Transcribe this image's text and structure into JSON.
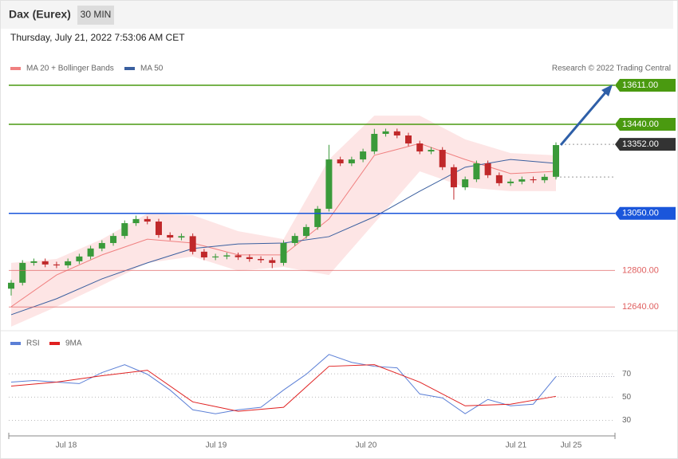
{
  "chart_data": {
    "type": "candlestick",
    "title": "Dax (Eurex)",
    "interval": "30 MIN",
    "subtitle": "Thursday, July 21, 2022 7:53:06 AM CET",
    "credit": "Research © 2022 Trading Central",
    "ylim": [
      12536,
      13740
    ],
    "xticks": [
      {
        "value": 4.85,
        "label": "Jul 18"
      },
      {
        "value": 18.06,
        "label": "Jul 19"
      },
      {
        "value": 31.27,
        "label": "Jul 20"
      },
      {
        "value": 44.48,
        "label": "Jul 21"
      },
      {
        "value": 49.33,
        "label": "Jul 25"
      }
    ],
    "up_color": "#3a9a3a",
    "down_color": "#c0282a",
    "open": [
      12720,
      12746,
      12833,
      12840,
      12826,
      12822,
      12840,
      12861,
      12896,
      12920,
      12951,
      13007,
      13025,
      13014,
      12955,
      12944,
      12950,
      12882,
      12857,
      12861,
      12866,
      12858,
      12850,
      12845,
      12833,
      12920,
      12951,
      12990,
      13070,
      13286,
      13269,
      13286,
      13321,
      13398,
      13409,
      13391,
      13356,
      13321,
      13328,
      13252,
      13164,
      13199,
      13269,
      13217,
      13182,
      13189,
      13199,
      13195,
      13210
    ],
    "high": [
      12758,
      12845,
      12852,
      12852,
      12838,
      12852,
      12873,
      12908,
      12932,
      12963,
      13019,
      13040,
      13037,
      13026,
      12967,
      12962,
      12962,
      12894,
      12873,
      12878,
      12878,
      12870,
      12862,
      12857,
      12932,
      12963,
      13002,
      13082,
      13350,
      13298,
      13298,
      13333,
      13420,
      13421,
      13421,
      13403,
      13368,
      13340,
      13340,
      13264,
      13211,
      13281,
      13281,
      13229,
      13201,
      13211,
      13211,
      13222,
      13361
    ],
    "low": [
      12690,
      12734,
      12821,
      12814,
      12810,
      12810,
      12828,
      12849,
      12884,
      12908,
      12939,
      12995,
      13002,
      12943,
      12932,
      12932,
      12870,
      12845,
      12845,
      12849,
      12846,
      12838,
      12833,
      12810,
      12821,
      12908,
      12939,
      12978,
      13058,
      13257,
      13257,
      13274,
      13309,
      13386,
      13379,
      13344,
      13309,
      13309,
      13240,
      13110,
      13152,
      13187,
      13205,
      13170,
      13170,
      13177,
      13183,
      13183,
      13198
    ],
    "close": [
      12746,
      12833,
      12840,
      12826,
      12822,
      12840,
      12861,
      12896,
      12920,
      12951,
      13007,
      13025,
      13014,
      12955,
      12944,
      12950,
      12882,
      12857,
      12861,
      12866,
      12858,
      12850,
      12845,
      12833,
      12920,
      12951,
      12990,
      13070,
      13286,
      13269,
      13286,
      13321,
      13398,
      13409,
      13391,
      13356,
      13321,
      13328,
      13252,
      13164,
      13199,
      13269,
      13217,
      13182,
      13189,
      13199,
      13195,
      13210,
      13349
    ],
    "overlay_x": [
      0,
      4,
      8,
      12,
      16,
      20,
      24,
      28,
      32,
      36,
      40,
      44,
      48
    ],
    "overlays": [
      {
        "name": "MA 20 + Bollinger Bands",
        "color": "#f08080",
        "values": [
          12641,
          12780,
          12868,
          12937,
          12920,
          12868,
          12868,
          13025,
          13304,
          13356,
          13286,
          13224,
          13234
        ],
        "upper": [
          12833,
          12850,
          12937,
          13049,
          13042,
          12972,
          12937,
          13286,
          13478,
          13478,
          13374,
          13314,
          13304
        ],
        "lower": [
          12554,
          12641,
          12735,
          12833,
          12861,
          12798,
          12815,
          12780,
          13007,
          13234,
          13164,
          13147,
          13147
        ]
      },
      {
        "name": "MA 50",
        "color": "#3a5f9f",
        "values": [
          12606,
          12676,
          12763,
          12833,
          12896,
          12916,
          12920,
          12948,
          13035,
          13147,
          13252,
          13286,
          13269
        ]
      }
    ],
    "levels": [
      {
        "value": 13611,
        "label": "13611.00",
        "color": "#4a9a10",
        "style": "solid"
      },
      {
        "value": 13440,
        "label": "13440.00",
        "color": "#4a9a10",
        "style": "solid"
      },
      {
        "value": 13352,
        "label": "13352.00",
        "color": "#333333",
        "style": "dotted"
      },
      {
        "value": 13050,
        "label": "13050.00",
        "color": "#1a56db",
        "style": "solid"
      },
      {
        "value": 12800,
        "label": "12800.00",
        "color": "#e06060",
        "style": "plain"
      },
      {
        "value": 12640,
        "label": "12640.00",
        "color": "#e06060",
        "style": "plain"
      }
    ],
    "rsi": {
      "ylim": [
        18,
        90
      ],
      "yticks": [
        30,
        50,
        70
      ],
      "x": [
        0,
        2,
        4,
        6,
        8,
        10,
        12,
        14,
        16,
        18,
        20,
        22,
        24,
        26,
        28,
        30,
        32,
        34,
        36,
        38,
        40,
        42,
        44,
        46,
        48
      ],
      "series": [
        {
          "name": "RSI",
          "color": "#5b7fd6",
          "values": [
            62.9,
            64.3,
            62.9,
            61.6,
            71.1,
            77.9,
            69.7,
            56.1,
            39.1,
            35.7,
            39.1,
            41.2,
            56.1,
            69.7,
            86.7,
            79.9,
            76.5,
            75.2,
            52.7,
            49.3,
            35.7,
            48.0,
            42.5,
            43.9,
            67.7
          ]
        },
        {
          "name": "9MA",
          "color": "#e02020",
          "values": [
            59.5,
            62.9,
            68.4,
            73.1,
            45.9,
            37.8,
            41.2,
            76.5,
            77.9,
            62.9,
            42.5,
            43.9,
            50.7
          ]
        }
      ]
    }
  }
}
